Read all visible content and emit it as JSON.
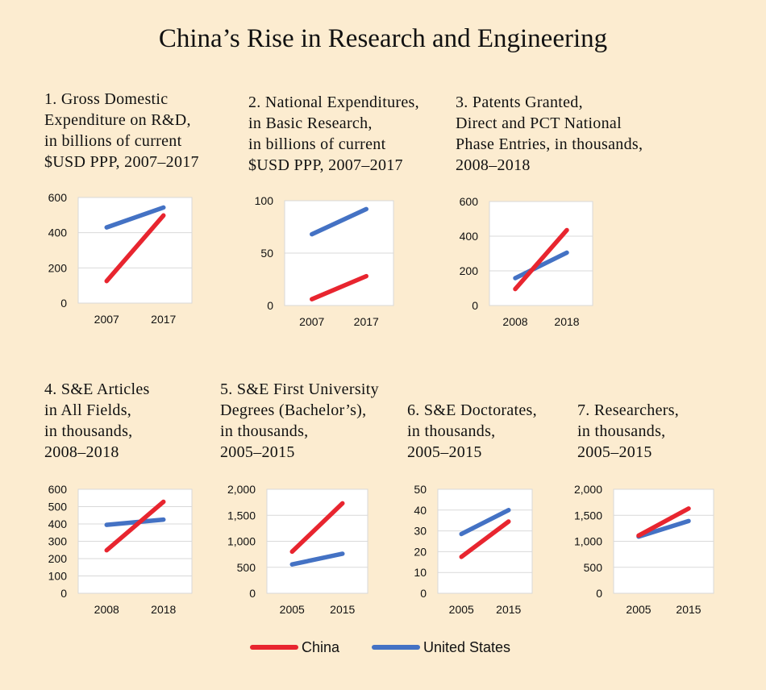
{
  "title": "China’s Rise in Research and Engineering",
  "colors": {
    "china": "#e8252f",
    "us": "#4472c4",
    "grid": "#d9d9d9",
    "plot_bg": "#ffffff"
  },
  "legend": {
    "china": "China",
    "us": "United States"
  },
  "panels": [
    {
      "title_lines": [
        "1. Gross Domestic",
        "Expenditure on R&D,",
        "in billions of current",
        "$USD PPP, 2007–2017"
      ]
    },
    {
      "title_lines": [
        "2. National Expenditures,",
        "in Basic Research,",
        "in billions of current",
        "$USD PPP, 2007–2017"
      ]
    },
    {
      "title_lines": [
        "3. Patents Granted,",
        "Direct and PCT National",
        "Phase Entries, in thousands,",
        "2008–2018"
      ]
    },
    {
      "title_lines": [
        "4. S&E Articles",
        "in All Fields,",
        "in thousands,",
        "2008–2018"
      ]
    },
    {
      "title_lines": [
        "5. S&E First University",
        "Degrees (Bachelor’s),",
        "in thousands,",
        "2005–2015"
      ]
    },
    {
      "title_lines": [
        "6. S&E Doctorates,",
        "in thousands,",
        "2005–2015"
      ]
    },
    {
      "title_lines": [
        "7. Researchers,",
        "in thousands,",
        "2005–2015"
      ]
    }
  ],
  "chart_data": [
    {
      "type": "line",
      "title": "1. Gross Domestic Expenditure on R&D, in billions of current $USD PPP, 2007–2017",
      "categories": [
        "2007",
        "2017"
      ],
      "ylim": [
        0,
        600
      ],
      "yticks": [
        0,
        200,
        400,
        600
      ],
      "ytick_labels": [
        "0",
        "200",
        "400",
        "600"
      ],
      "series": [
        {
          "name": "China",
          "values": [
            125,
            498
          ]
        },
        {
          "name": "United States",
          "values": [
            430,
            543
          ]
        }
      ]
    },
    {
      "type": "line",
      "title": "2. National Expenditures, in Basic Research, in billions of current $USD PPP, 2007–2017",
      "categories": [
        "2007",
        "2017"
      ],
      "ylim": [
        0,
        100
      ],
      "yticks": [
        0,
        50,
        100
      ],
      "ytick_labels": [
        "0",
        "50",
        "100"
      ],
      "series": [
        {
          "name": "China",
          "values": [
            6,
            28
          ]
        },
        {
          "name": "United States",
          "values": [
            68,
            92
          ]
        }
      ]
    },
    {
      "type": "line",
      "title": "3. Patents Granted, Direct and PCT National Phase Entries, in thousands, 2008–2018",
      "categories": [
        "2008",
        "2018"
      ],
      "ylim": [
        0,
        600
      ],
      "yticks": [
        0,
        200,
        400,
        600
      ],
      "ytick_labels": [
        "0",
        "200",
        "400",
        "600"
      ],
      "series": [
        {
          "name": "China",
          "values": [
            95,
            435
          ]
        },
        {
          "name": "United States",
          "values": [
            158,
            305
          ]
        }
      ]
    },
    {
      "type": "line",
      "title": "4. S&E Articles in All Fields, in thousands, 2008–2018",
      "categories": [
        "2008",
        "2018"
      ],
      "ylim": [
        0,
        600
      ],
      "yticks": [
        0,
        100,
        200,
        300,
        400,
        500,
        600
      ],
      "ytick_labels": [
        "0",
        "100",
        "200",
        "300",
        "400",
        "500",
        "600"
      ],
      "series": [
        {
          "name": "China",
          "values": [
            248,
            528
          ]
        },
        {
          "name": "United States",
          "values": [
            395,
            425
          ]
        }
      ]
    },
    {
      "type": "line",
      "title": "5. S&E First University Degrees (Bachelor’s), in thousands, 2005–2015",
      "categories": [
        "2005",
        "2015"
      ],
      "ylim": [
        0,
        2000
      ],
      "yticks": [
        0,
        500,
        1000,
        1500,
        2000
      ],
      "ytick_labels": [
        "0",
        "500",
        "1,000",
        "1,500",
        "2,000"
      ],
      "series": [
        {
          "name": "China",
          "values": [
            800,
            1730
          ]
        },
        {
          "name": "United States",
          "values": [
            555,
            760
          ]
        }
      ]
    },
    {
      "type": "line",
      "title": "6. S&E Doctorates, in thousands, 2005–2015",
      "categories": [
        "2005",
        "2015"
      ],
      "ylim": [
        0,
        50
      ],
      "yticks": [
        0,
        10,
        20,
        30,
        40,
        50
      ],
      "ytick_labels": [
        "0",
        "10",
        "20",
        "30",
        "40",
        "50"
      ],
      "series": [
        {
          "name": "China",
          "values": [
            17.5,
            34.5
          ]
        },
        {
          "name": "United States",
          "values": [
            28.5,
            40
          ]
        }
      ]
    },
    {
      "type": "line",
      "title": "7. Researchers, in thousands, 2005–2015",
      "categories": [
        "2005",
        "2015"
      ],
      "ylim": [
        0,
        2000
      ],
      "yticks": [
        0,
        500,
        1000,
        1500,
        2000
      ],
      "ytick_labels": [
        "0",
        "500",
        "1,000",
        "1,500",
        "2,000"
      ],
      "series": [
        {
          "name": "China",
          "values": [
            1110,
            1630
          ]
        },
        {
          "name": "United States",
          "values": [
            1090,
            1390
          ]
        }
      ]
    }
  ]
}
